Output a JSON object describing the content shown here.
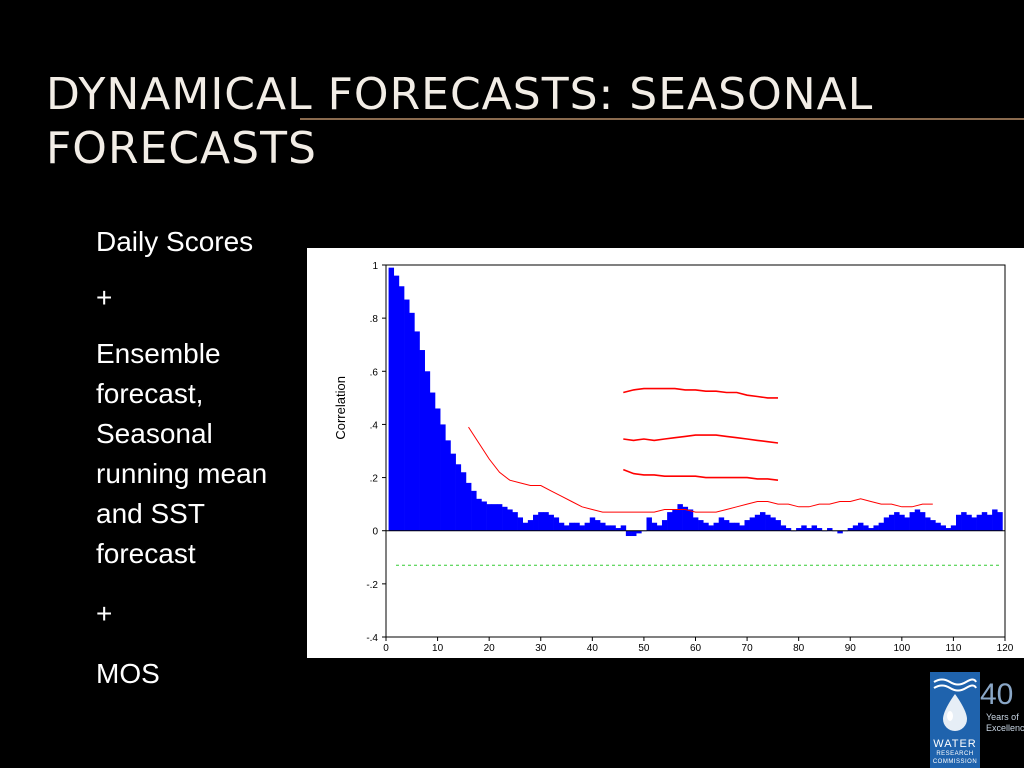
{
  "slide": {
    "title": "DYNAMICAL FORECASTS: SEASONAL FORECASTS",
    "bullets": [
      "Daily Scores",
      "+",
      "Ensemble forecast, Seasonal running mean and SST forecast",
      "+",
      "MOS"
    ]
  },
  "logo": {
    "forty": "40",
    "years": "Years of Excellence",
    "water": "WATER",
    "research": "RESEARCH",
    "commission": "COMMISSION"
  },
  "colors": {
    "bars": "#0000ff",
    "lines": "#ff0000",
    "threshold": "#33cc33",
    "logo_blue": "#1f63ad"
  },
  "chart_data": {
    "type": "bar",
    "title": "",
    "xlabel": "",
    "ylabel": "Correlation",
    "xlim": [
      0,
      120
    ],
    "ylim": [
      -0.4,
      1
    ],
    "xticks": [
      0,
      10,
      20,
      30,
      40,
      50,
      60,
      70,
      80,
      90,
      100,
      110,
      120
    ],
    "yticks": [
      1,
      0.8,
      0.6,
      0.4,
      0.2,
      0,
      -0.2,
      -0.4
    ],
    "ytick_labels": [
      "1",
      ".8",
      ".6",
      ".4",
      ".2",
      "0",
      "-.2",
      "-.4"
    ],
    "grid": false,
    "bars": {
      "name": "Daily Scores",
      "x": [
        1,
        2,
        3,
        4,
        5,
        6,
        7,
        8,
        9,
        10,
        11,
        12,
        13,
        14,
        15,
        16,
        17,
        18,
        19,
        20,
        21,
        22,
        23,
        24,
        25,
        26,
        27,
        28,
        29,
        30,
        31,
        32,
        33,
        34,
        35,
        36,
        37,
        38,
        39,
        40,
        41,
        42,
        43,
        44,
        45,
        46,
        47,
        48,
        49,
        50,
        51,
        52,
        53,
        54,
        55,
        56,
        57,
        58,
        59,
        60,
        61,
        62,
        63,
        64,
        65,
        66,
        67,
        68,
        69,
        70,
        71,
        72,
        73,
        74,
        75,
        76,
        77,
        78,
        79,
        80,
        81,
        82,
        83,
        84,
        85,
        86,
        87,
        88,
        89,
        90,
        91,
        92,
        93,
        94,
        95,
        96,
        97,
        98,
        99,
        100,
        101,
        102,
        103,
        104,
        105,
        106,
        107,
        108,
        109,
        110,
        111,
        112,
        113,
        114,
        115,
        116,
        117,
        118,
        119
      ],
      "values": [
        0.99,
        0.96,
        0.92,
        0.87,
        0.82,
        0.75,
        0.68,
        0.6,
        0.52,
        0.46,
        0.4,
        0.34,
        0.29,
        0.25,
        0.22,
        0.18,
        0.15,
        0.12,
        0.11,
        0.1,
        0.1,
        0.1,
        0.09,
        0.08,
        0.07,
        0.05,
        0.03,
        0.04,
        0.06,
        0.07,
        0.07,
        0.06,
        0.05,
        0.03,
        0.02,
        0.03,
        0.03,
        0.02,
        0.03,
        0.05,
        0.04,
        0.03,
        0.02,
        0.02,
        0.01,
        0.02,
        -0.02,
        -0.02,
        -0.01,
        0.0,
        0.05,
        0.03,
        0.02,
        0.04,
        0.07,
        0.08,
        0.1,
        0.09,
        0.08,
        0.05,
        0.04,
        0.03,
        0.02,
        0.03,
        0.05,
        0.04,
        0.03,
        0.03,
        0.02,
        0.04,
        0.05,
        0.06,
        0.07,
        0.06,
        0.05,
        0.04,
        0.02,
        0.01,
        0.0,
        0.01,
        0.02,
        0.01,
        0.02,
        0.01,
        0.0,
        0.01,
        0.0,
        -0.01,
        0.0,
        0.01,
        0.02,
        0.03,
        0.02,
        0.01,
        0.02,
        0.03,
        0.05,
        0.06,
        0.07,
        0.06,
        0.05,
        0.07,
        0.08,
        0.07,
        0.05,
        0.04,
        0.03,
        0.02,
        0.01,
        0.02,
        0.06,
        0.07,
        0.06,
        0.05,
        0.06,
        0.07,
        0.06,
        0.08,
        0.07
      ]
    },
    "lines": [
      {
        "x": [
          16,
          18,
          20,
          22,
          24,
          26,
          28,
          30,
          32,
          34,
          36,
          38,
          40,
          42,
          44,
          46,
          48,
          50,
          52,
          54,
          56,
          58,
          60,
          62,
          64,
          66,
          68,
          70,
          72,
          74,
          76,
          78,
          80,
          82,
          84,
          86,
          88,
          90,
          92,
          94,
          96,
          98,
          100,
          102,
          104,
          106
        ],
        "values": [
          0.39,
          0.33,
          0.27,
          0.22,
          0.19,
          0.18,
          0.17,
          0.17,
          0.15,
          0.13,
          0.11,
          0.09,
          0.08,
          0.07,
          0.07,
          0.07,
          0.07,
          0.07,
          0.07,
          0.08,
          0.08,
          0.08,
          0.07,
          0.07,
          0.07,
          0.08,
          0.09,
          0.1,
          0.11,
          0.11,
          0.1,
          0.1,
          0.09,
          0.09,
          0.1,
          0.1,
          0.11,
          0.11,
          0.12,
          0.11,
          0.1,
          0.1,
          0.09,
          0.09,
          0.1,
          0.1
        ]
      },
      {
        "x": [
          46,
          48,
          50,
          52,
          54,
          56,
          58,
          60,
          62,
          64,
          66,
          68,
          70,
          72,
          74,
          76
        ],
        "values": [
          0.52,
          0.53,
          0.535,
          0.535,
          0.535,
          0.535,
          0.53,
          0.53,
          0.525,
          0.525,
          0.52,
          0.52,
          0.51,
          0.505,
          0.5,
          0.5
        ]
      },
      {
        "x": [
          46,
          48,
          50,
          52,
          54,
          56,
          58,
          60,
          62,
          64,
          66,
          68,
          70,
          72,
          74,
          76
        ],
        "values": [
          0.345,
          0.34,
          0.345,
          0.34,
          0.345,
          0.35,
          0.355,
          0.36,
          0.36,
          0.36,
          0.355,
          0.35,
          0.345,
          0.34,
          0.335,
          0.33
        ]
      },
      {
        "x": [
          46,
          48,
          50,
          52,
          54,
          56,
          58,
          60,
          62,
          64,
          66,
          68,
          70,
          72,
          74,
          76
        ],
        "values": [
          0.23,
          0.215,
          0.21,
          0.21,
          0.205,
          0.205,
          0.205,
          0.205,
          0.2,
          0.2,
          0.2,
          0.2,
          0.2,
          0.195,
          0.195,
          0.19
        ]
      }
    ],
    "reference_line": {
      "value": -0.13,
      "style": "dashed"
    }
  }
}
